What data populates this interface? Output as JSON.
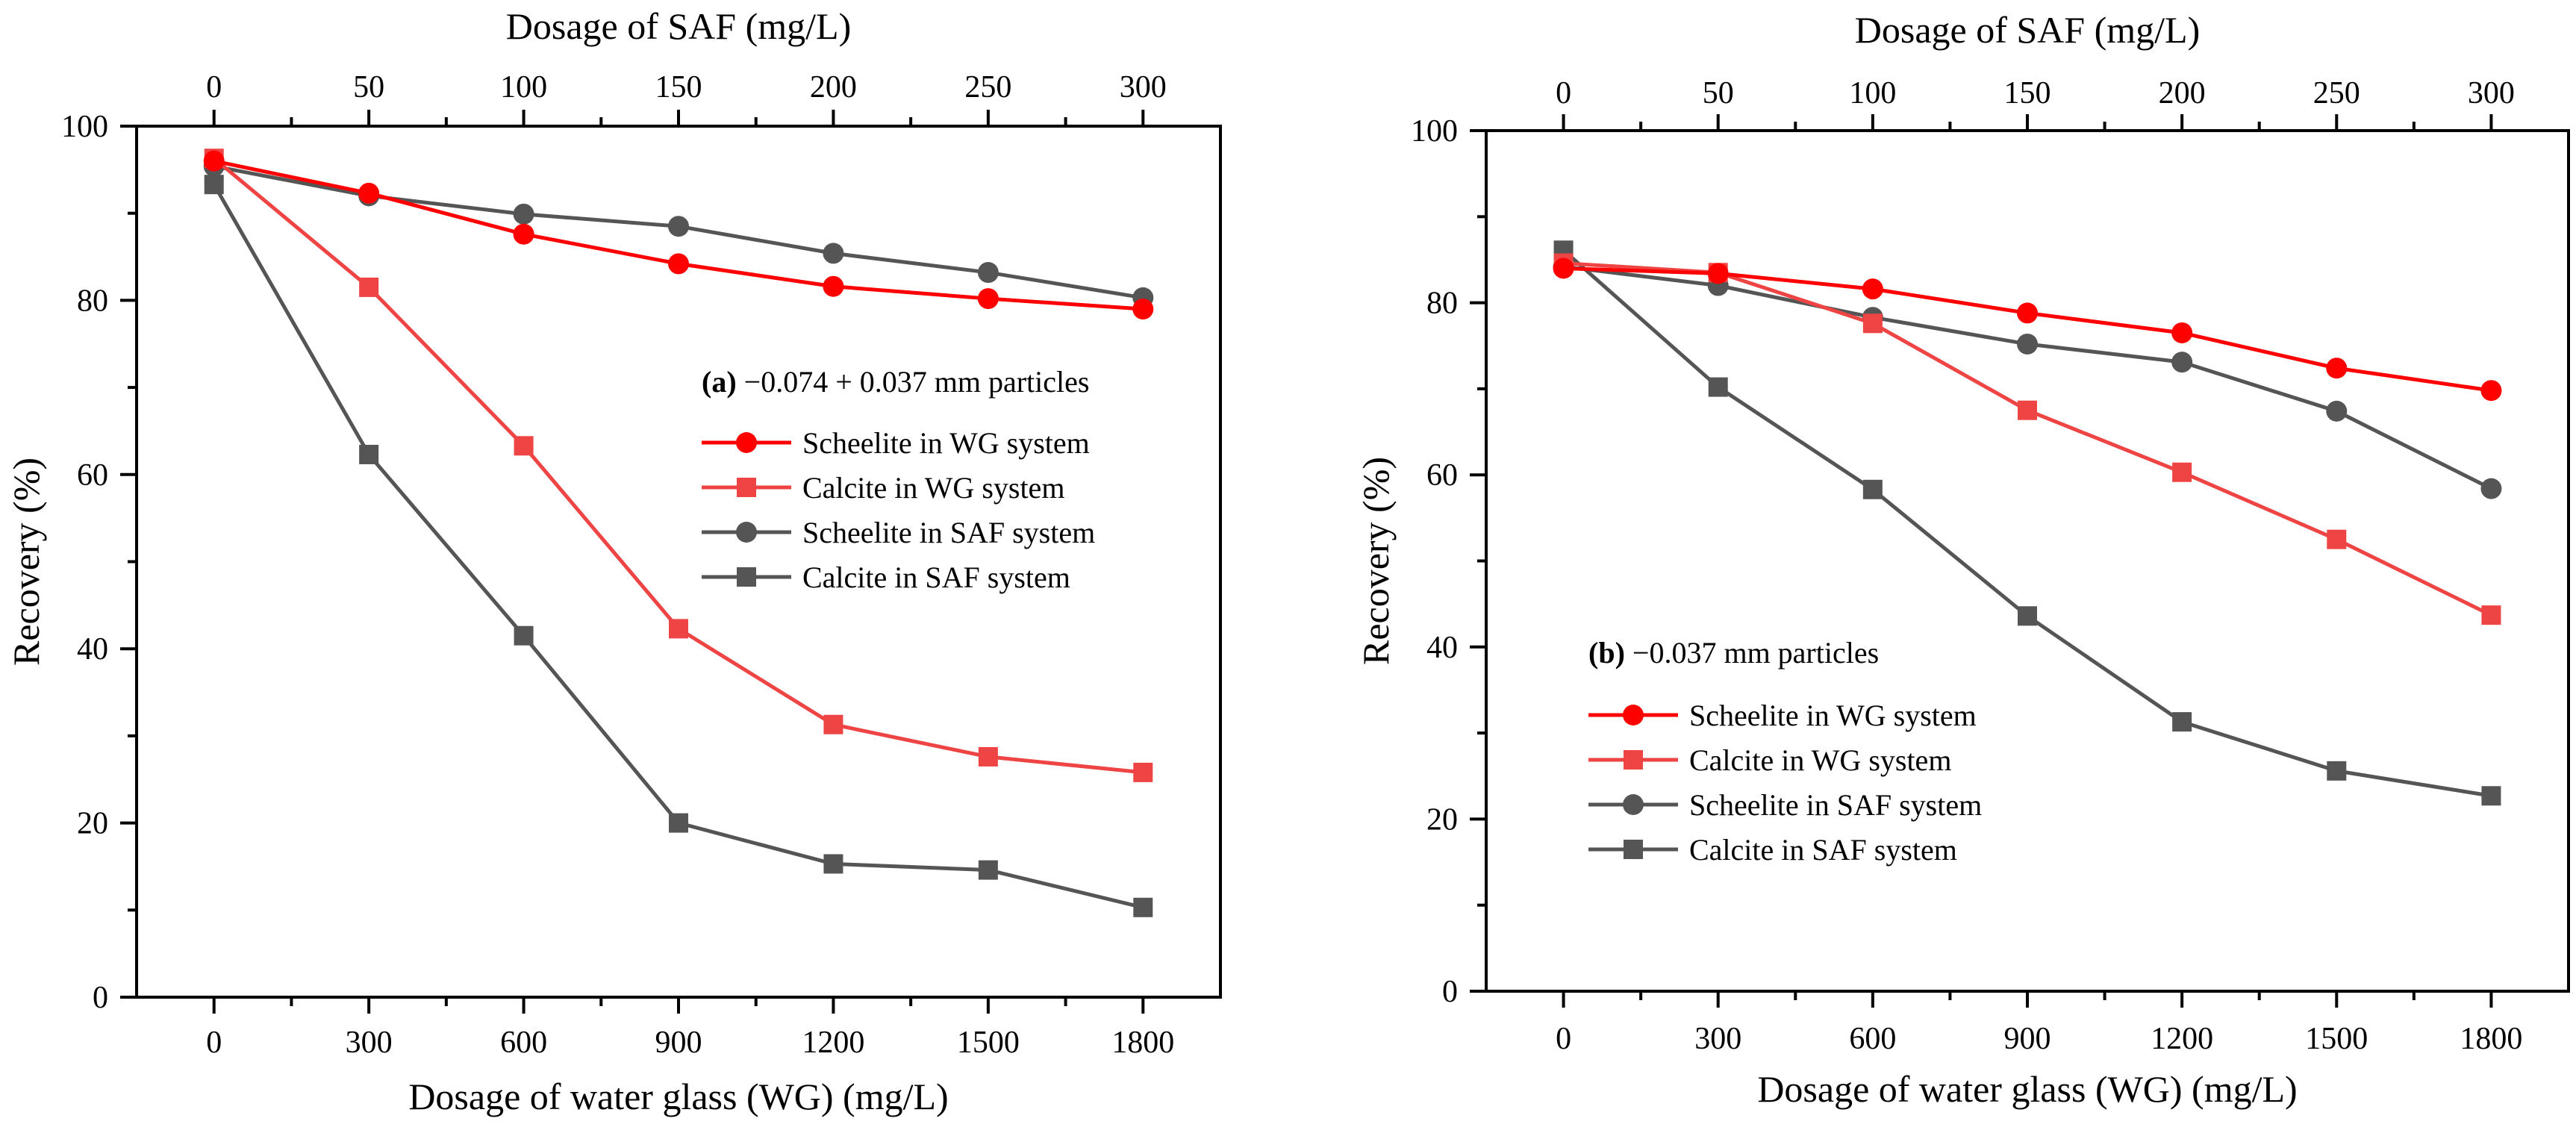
{
  "colors": {
    "red": "#ff0000",
    "lightred": "#ee4444",
    "gray": "#555555",
    "axis": "#000000"
  },
  "chart_data": [
    {
      "type": "line",
      "panel": "a",
      "legend_title_bold": "(a)",
      "legend_title_rest": " −0.074 + 0.037 mm particles",
      "legend_position": "center-right",
      "xlabel": "Dosage of water glass (WG) (mg/L)",
      "x2label": "Dosage of SAF (mg/L)",
      "ylabel": "Recovery (%)",
      "x": [
        0,
        300,
        600,
        900,
        1200,
        1500,
        1800
      ],
      "x_tick_labels": [
        "0",
        "300",
        "600",
        "900",
        "1200",
        "1500",
        "1800"
      ],
      "x2_tick_labels": [
        "0",
        "50",
        "100",
        "150",
        "200",
        "250",
        "300"
      ],
      "y_tick_labels": [
        "0",
        "20",
        "40",
        "60",
        "80",
        "100"
      ],
      "xlim": [
        -150,
        1950
      ],
      "ylim": [
        0,
        100
      ],
      "series": [
        {
          "name": "Scheelite in WG system",
          "marker": "circle",
          "color": "#ff0000",
          "values": [
            96.0,
            92.3,
            87.6,
            84.2,
            81.6,
            80.2,
            79.0
          ]
        },
        {
          "name": "Calcite in WG system",
          "marker": "square",
          "color": "#ee4444",
          "values": [
            96.3,
            81.5,
            63.3,
            42.3,
            31.3,
            27.6,
            25.8
          ]
        },
        {
          "name": "Scheelite in SAF system",
          "marker": "circle",
          "color": "#555555",
          "values": [
            95.4,
            92.0,
            89.9,
            88.5,
            85.4,
            83.2,
            80.3
          ]
        },
        {
          "name": "Calcite in SAF system",
          "marker": "square",
          "color": "#555555",
          "values": [
            93.3,
            62.3,
            41.5,
            20.0,
            15.3,
            14.6,
            10.3
          ]
        }
      ]
    },
    {
      "type": "line",
      "panel": "b",
      "legend_title_bold": "(b)",
      "legend_title_rest": " −0.037 mm particles",
      "legend_position": "lower-left",
      "xlabel": "Dosage of water glass (WG) (mg/L)",
      "x2label": "Dosage of SAF (mg/L)",
      "ylabel": "Recovery (%)",
      "x": [
        0,
        300,
        600,
        900,
        1200,
        1500,
        1800
      ],
      "x_tick_labels": [
        "0",
        "300",
        "600",
        "900",
        "1200",
        "1500",
        "1800"
      ],
      "x2_tick_labels": [
        "0",
        "50",
        "100",
        "150",
        "200",
        "250",
        "300"
      ],
      "y_tick_labels": [
        "0",
        "20",
        "40",
        "60",
        "80",
        "100"
      ],
      "xlim": [
        -150,
        1950
      ],
      "ylim": [
        0,
        100
      ],
      "series": [
        {
          "name": "Scheelite in WG system",
          "marker": "circle",
          "color": "#ff0000",
          "values": [
            84.0,
            83.4,
            81.6,
            78.8,
            76.5,
            72.4,
            69.8
          ]
        },
        {
          "name": "Calcite in WG system",
          "marker": "square",
          "color": "#ee4444",
          "values": [
            84.6,
            83.5,
            77.6,
            67.5,
            60.3,
            52.5,
            43.7
          ]
        },
        {
          "name": "Scheelite in SAF system",
          "marker": "circle",
          "color": "#555555",
          "values": [
            84.2,
            82.0,
            78.3,
            75.2,
            73.1,
            67.4,
            58.4
          ]
        },
        {
          "name": "Calcite in SAF system",
          "marker": "square",
          "color": "#555555",
          "values": [
            86.1,
            70.2,
            58.3,
            43.6,
            31.3,
            25.6,
            22.7
          ]
        }
      ]
    }
  ]
}
